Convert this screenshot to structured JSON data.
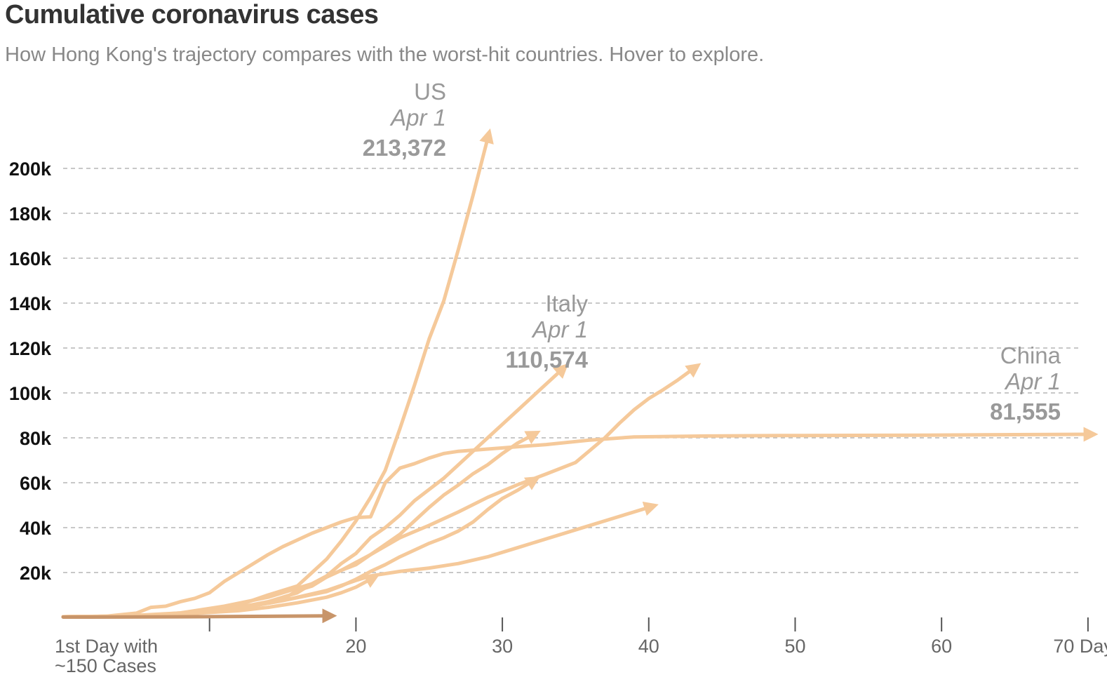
{
  "header": {
    "title": "Cumulative coronavirus cases",
    "subtitle": "How Hong Kong's trajectory compares with the worst-hit countries. Hover to explore."
  },
  "colors": {
    "series": "#f5c99a",
    "hong_kong": "#c8956a",
    "grid": "#b5b5b5",
    "axis": "#555555",
    "annotation": "#999999"
  },
  "chart_data": {
    "type": "line",
    "title": "Cumulative coronavirus cases",
    "subtitle": "How Hong Kong's trajectory compares with the worst-hit countries. Hover to explore.",
    "xlim": [
      1,
      70
    ],
    "ylim": [
      0,
      210000
    ],
    "grid": true,
    "y_ticks": [
      {
        "value": 20000,
        "label": "20k"
      },
      {
        "value": 40000,
        "label": "40k"
      },
      {
        "value": 60000,
        "label": "60k"
      },
      {
        "value": 80000,
        "label": "80k"
      },
      {
        "value": 100000,
        "label": "100k"
      },
      {
        "value": 120000,
        "label": "120k"
      },
      {
        "value": 140000,
        "label": "140k"
      },
      {
        "value": 160000,
        "label": "160k"
      },
      {
        "value": 180000,
        "label": "180k"
      },
      {
        "value": 200000,
        "label": "200k"
      }
    ],
    "x_ticks": [
      {
        "value": 1,
        "label": "1st Day with",
        "label2": "~150 Cases",
        "mark": false
      },
      {
        "value": 11,
        "label": "",
        "mark": true
      },
      {
        "value": 21,
        "label": "20",
        "mark": true
      },
      {
        "value": 31,
        "label": "30",
        "mark": true
      },
      {
        "value": 41,
        "label": "40",
        "mark": true
      },
      {
        "value": 51,
        "label": "50",
        "mark": true
      },
      {
        "value": 61,
        "label": "60",
        "mark": true
      },
      {
        "value": 71,
        "label": "70 Days",
        "mark": true
      }
    ],
    "series": [
      {
        "name": "China",
        "highlight": false,
        "points": [
          [
            1,
            300
          ],
          [
            4,
            600
          ],
          [
            6,
            1900
          ],
          [
            7,
            4500
          ],
          [
            8,
            5000
          ],
          [
            9,
            7000
          ],
          [
            10,
            8500
          ],
          [
            11,
            11000
          ],
          [
            12,
            16000
          ],
          [
            14,
            24000
          ],
          [
            15,
            28000
          ],
          [
            16,
            31500
          ],
          [
            17,
            34500
          ],
          [
            18,
            37500
          ],
          [
            19,
            40000
          ],
          [
            20,
            42500
          ],
          [
            21,
            44500
          ],
          [
            22,
            44800
          ],
          [
            23,
            60000
          ],
          [
            24,
            66500
          ],
          [
            25,
            68500
          ],
          [
            26,
            71000
          ],
          [
            27,
            73000
          ],
          [
            28,
            74000
          ],
          [
            30,
            75000
          ],
          [
            32,
            76000
          ],
          [
            34,
            77000
          ],
          [
            37,
            79000
          ],
          [
            40,
            80400
          ],
          [
            45,
            80800
          ],
          [
            50,
            81000
          ],
          [
            55,
            81100
          ],
          [
            60,
            81200
          ],
          [
            66,
            81400
          ],
          [
            71,
            81555
          ]
        ]
      },
      {
        "name": "US",
        "highlight": false,
        "points": [
          [
            1,
            300
          ],
          [
            4,
            500
          ],
          [
            7,
            1000
          ],
          [
            10,
            2500
          ],
          [
            13,
            5500
          ],
          [
            15,
            10000
          ],
          [
            17,
            14000
          ],
          [
            18,
            20000
          ],
          [
            19,
            26000
          ],
          [
            20,
            34000
          ],
          [
            21,
            43000
          ],
          [
            22,
            53500
          ],
          [
            23,
            65500
          ],
          [
            24,
            84000
          ],
          [
            25,
            103500
          ],
          [
            26,
            124000
          ],
          [
            27,
            141000
          ],
          [
            28,
            164000
          ],
          [
            29,
            188000
          ],
          [
            30,
            213372
          ]
        ]
      },
      {
        "name": "Italy",
        "highlight": false,
        "points": [
          [
            1,
            300
          ],
          [
            5,
            600
          ],
          [
            9,
            2000
          ],
          [
            12,
            5000
          ],
          [
            15,
            9000
          ],
          [
            18,
            15000
          ],
          [
            20,
            21000
          ],
          [
            22,
            28000
          ],
          [
            24,
            35500
          ],
          [
            26,
            41000
          ],
          [
            28,
            47000
          ],
          [
            30,
            53500
          ],
          [
            32,
            59000
          ],
          [
            34,
            63900
          ],
          [
            36,
            69000
          ],
          [
            37,
            74500
          ],
          [
            38,
            80000
          ],
          [
            39,
            86500
          ],
          [
            40,
            92500
          ],
          [
            41,
            97500
          ],
          [
            42,
            101500
          ],
          [
            43,
            105800
          ],
          [
            44,
            110574
          ]
        ]
      },
      {
        "name": "",
        "highlight": false,
        "points": [
          [
            1,
            300
          ],
          [
            5,
            600
          ],
          [
            9,
            1500
          ],
          [
            13,
            4500
          ],
          [
            15,
            7000
          ],
          [
            17,
            11000
          ],
          [
            18,
            15000
          ],
          [
            19,
            18500
          ],
          [
            20,
            24000
          ],
          [
            21,
            28500
          ],
          [
            22,
            35500
          ],
          [
            23,
            40000
          ],
          [
            24,
            45500
          ],
          [
            25,
            52000
          ],
          [
            26,
            57000
          ],
          [
            27,
            62000
          ],
          [
            28,
            68000
          ],
          [
            29,
            74000
          ],
          [
            30,
            80000
          ],
          [
            31,
            86000
          ],
          [
            32,
            92000
          ],
          [
            33,
            98000
          ],
          [
            34,
            104000
          ],
          [
            35,
            110000
          ]
        ]
      },
      {
        "name": "",
        "highlight": false,
        "points": [
          [
            1,
            300
          ],
          [
            5,
            500
          ],
          [
            9,
            1500
          ],
          [
            12,
            3500
          ],
          [
            14,
            5500
          ],
          [
            16,
            8000
          ],
          [
            17,
            12000
          ],
          [
            18,
            14000
          ],
          [
            19,
            18000
          ],
          [
            20,
            21000
          ],
          [
            21,
            23500
          ],
          [
            22,
            28000
          ],
          [
            23,
            32500
          ],
          [
            24,
            37000
          ],
          [
            25,
            43000
          ],
          [
            26,
            49000
          ],
          [
            27,
            54500
          ],
          [
            28,
            59000
          ],
          [
            29,
            64000
          ],
          [
            30,
            68000
          ],
          [
            31,
            73000
          ],
          [
            32,
            77500
          ],
          [
            33,
            81000
          ]
        ]
      },
      {
        "name": "",
        "highlight": false,
        "points": [
          [
            1,
            300
          ],
          [
            5,
            500
          ],
          [
            9,
            1500
          ],
          [
            13,
            4000
          ],
          [
            16,
            7500
          ],
          [
            19,
            11500
          ],
          [
            20,
            14000
          ],
          [
            21,
            17000
          ],
          [
            22,
            20500
          ],
          [
            23,
            23500
          ],
          [
            24,
            27000
          ],
          [
            25,
            30000
          ],
          [
            26,
            33000
          ],
          [
            27,
            35500
          ],
          [
            28,
            38500
          ],
          [
            29,
            42500
          ],
          [
            30,
            48000
          ],
          [
            31,
            53000
          ],
          [
            32,
            56500
          ],
          [
            33,
            60500
          ]
        ]
      },
      {
        "name": "",
        "highlight": false,
        "points": [
          [
            1,
            300
          ],
          [
            5,
            500
          ],
          [
            9,
            1500
          ],
          [
            13,
            4000
          ],
          [
            16,
            7500
          ],
          [
            19,
            12000
          ],
          [
            21,
            16500
          ],
          [
            22,
            18500
          ],
          [
            24,
            20500
          ],
          [
            26,
            22000
          ],
          [
            28,
            24000
          ],
          [
            30,
            27000
          ],
          [
            32,
            31000
          ],
          [
            34,
            35000
          ],
          [
            36,
            39000
          ],
          [
            38,
            43000
          ],
          [
            40,
            47000
          ],
          [
            41,
            49000
          ]
        ]
      },
      {
        "name": "",
        "highlight": false,
        "points": [
          [
            1,
            300
          ],
          [
            4,
            500
          ],
          [
            7,
            1000
          ],
          [
            10,
            1800
          ],
          [
            13,
            3000
          ],
          [
            15,
            4500
          ],
          [
            17,
            6500
          ],
          [
            19,
            9000
          ],
          [
            20,
            11000
          ],
          [
            21,
            13500
          ],
          [
            22,
            17000
          ]
        ]
      },
      {
        "name": "Hong Kong",
        "highlight": true,
        "points": [
          [
            1,
            150
          ],
          [
            5,
            180
          ],
          [
            10,
            300
          ],
          [
            15,
            500
          ],
          [
            19,
            714
          ]
        ]
      }
    ],
    "annotations": [
      {
        "series": "US",
        "name": "US",
        "date": "Apr 1",
        "value": "213,372"
      },
      {
        "series": "Italy",
        "name": "Italy",
        "date": "Apr 1",
        "value": "110,574"
      },
      {
        "series": "China",
        "name": "China",
        "date": "Apr 1",
        "value": "81,555"
      }
    ]
  }
}
